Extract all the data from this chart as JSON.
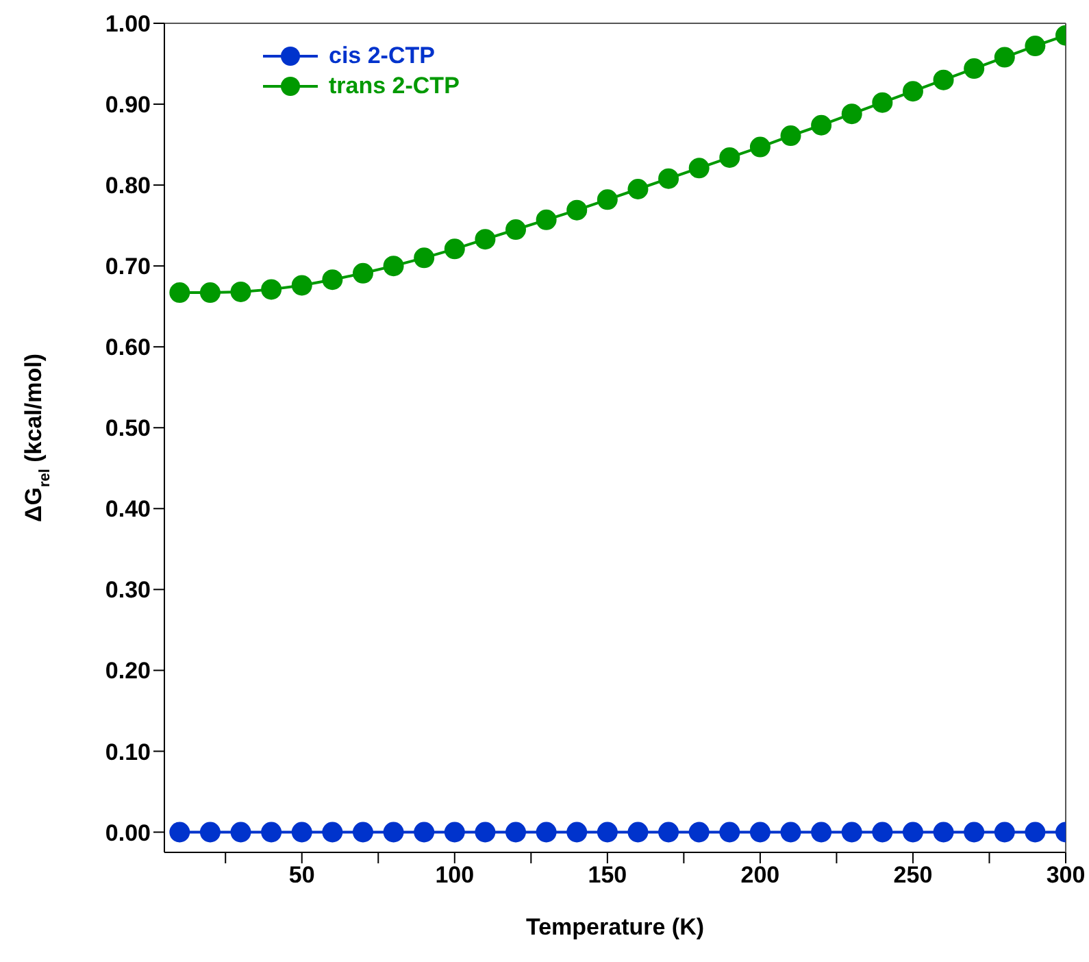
{
  "chart_data": {
    "type": "line",
    "xlabel": "Temperature (K)",
    "ylabel": "ΔG$_{rel}$ (kcal/mol)",
    "x": [
      10,
      20,
      30,
      40,
      50,
      60,
      70,
      80,
      90,
      100,
      110,
      120,
      130,
      140,
      150,
      160,
      170,
      180,
      190,
      200,
      210,
      220,
      230,
      240,
      250,
      260,
      270,
      280,
      290,
      300
    ],
    "series": [
      {
        "name": "cis 2-CTP",
        "color": "#0033cc",
        "values": [
          0,
          0,
          0,
          0,
          0,
          0,
          0,
          0,
          0,
          0,
          0,
          0,
          0,
          0,
          0,
          0,
          0,
          0,
          0,
          0,
          0,
          0,
          0,
          0,
          0,
          0,
          0,
          0,
          0,
          0
        ]
      },
      {
        "name": "trans 2-CTP",
        "color": "#009900",
        "values": [
          0.667,
          0.667,
          0.668,
          0.671,
          0.676,
          0.683,
          0.691,
          0.7,
          0.71,
          0.721,
          0.733,
          0.745,
          0.757,
          0.769,
          0.782,
          0.795,
          0.808,
          0.821,
          0.834,
          0.847,
          0.861,
          0.874,
          0.888,
          0.902,
          0.916,
          0.93,
          0.944,
          0.958,
          0.972,
          0.985
        ]
      }
    ],
    "xlim": [
      5,
      300
    ],
    "xticks": [
      {
        "value": 25,
        "label": null
      },
      50,
      {
        "value": 75,
        "label": null
      },
      100,
      {
        "value": 125,
        "label": null
      },
      150,
      {
        "value": 175,
        "label": null
      },
      200,
      {
        "value": 225,
        "label": null
      },
      250,
      {
        "value": 275,
        "label": null
      },
      300
    ],
    "ylim": [
      -0.025,
      1.0
    ],
    "yticks": [
      {
        "value": 0,
        "label": "0.00"
      },
      {
        "value": 0.1,
        "label": "0.10"
      },
      {
        "value": 0.2,
        "label": "0.20"
      },
      {
        "value": 0.3,
        "label": "0.30"
      },
      {
        "value": 0.4,
        "label": "0.40"
      },
      {
        "value": 0.5,
        "label": "0.50"
      },
      {
        "value": 0.6,
        "label": "0.60"
      },
      {
        "value": 0.7,
        "label": "0.70"
      },
      {
        "value": 0.8,
        "label": "0.80"
      },
      {
        "value": 0.9,
        "label": "0.90"
      },
      {
        "value": 1.0,
        "label": "1.00"
      }
    ],
    "grid": false,
    "legend": "top left",
    "marker": "circle",
    "line_style": "solid"
  }
}
